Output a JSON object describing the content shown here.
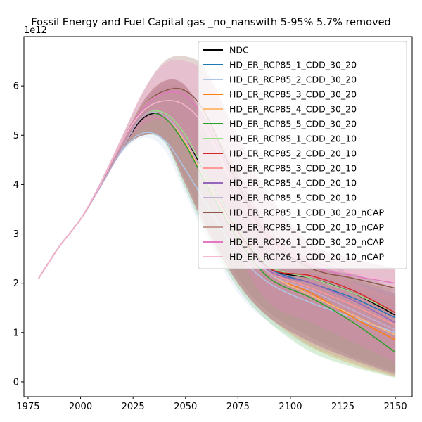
{
  "chart_data": {
    "type": "area",
    "title": "Fossil Energy and Fuel Capital gas _no_nanswith 5-95% 5.7% removed",
    "y_offset_label": "1e12",
    "xlabel": "",
    "ylabel": "",
    "xlim": [
      1973,
      2158
    ],
    "ylim": [
      -0.3,
      7.0
    ],
    "xticks": [
      1975,
      2000,
      2025,
      2050,
      2075,
      2100,
      2125,
      2150
    ],
    "yticks": [
      0,
      1,
      2,
      3,
      4,
      5,
      6
    ],
    "legend_position": "upper right",
    "legend": [
      {
        "name": "NDC",
        "color": "#000000"
      },
      {
        "name": "HD_ER_RCP85_1_CDD_30_20",
        "color": "#1f77b4"
      },
      {
        "name": "HD_ER_RCP85_2_CDD_30_20",
        "color": "#aec7e8"
      },
      {
        "name": "HD_ER_RCP85_3_CDD_30_20",
        "color": "#ff7f0e"
      },
      {
        "name": "HD_ER_RCP85_4_CDD_30_20",
        "color": "#ffbb78"
      },
      {
        "name": "HD_ER_RCP85_5_CDD_30_20",
        "color": "#2ca02c"
      },
      {
        "name": "HD_ER_RCP85_1_CDD_20_10",
        "color": "#98df8a"
      },
      {
        "name": "HD_ER_RCP85_2_CDD_20_10",
        "color": "#d62728"
      },
      {
        "name": "HD_ER_RCP85_3_CDD_20_10",
        "color": "#ff9896"
      },
      {
        "name": "HD_ER_RCP85_4_CDD_20_10",
        "color": "#9467bd"
      },
      {
        "name": "HD_ER_RCP85_5_CDD_20_10",
        "color": "#c5b0d5"
      },
      {
        "name": "HD_ER_RCP85_1_CDD_30_20_nCAP",
        "color": "#8c564b"
      },
      {
        "name": "HD_ER_RCP85_1_CDD_20_10_nCAP",
        "color": "#c49c94"
      },
      {
        "name": "HD_ER_RCP26_1_CDD_30_20_nCAP",
        "color": "#e377c2"
      },
      {
        "name": "HD_ER_RCP26_1_CDD_20_10_nCAP",
        "color": "#f7b6d2"
      }
    ],
    "x": [
      1980,
      1990,
      2000,
      2010,
      2020,
      2030,
      2040,
      2050,
      2060,
      2075,
      2090,
      2110,
      2130,
      2150
    ],
    "series": [
      {
        "name": "NDC",
        "color": "#000000",
        "values": [
          2.1,
          2.75,
          3.3,
          4.0,
          4.75,
          5.35,
          5.4,
          4.9,
          4.2,
          3.1,
          2.3,
          2.1,
          1.8,
          1.35
        ],
        "lower": [
          2.1,
          2.75,
          3.3,
          4.0,
          4.7,
          5.0,
          4.9,
          4.1,
          3.2,
          2.1,
          1.4,
          0.9,
          0.5,
          0.2
        ],
        "upper": [
          2.1,
          2.75,
          3.3,
          4.05,
          4.85,
          5.65,
          6.1,
          6.0,
          5.3,
          4.3,
          3.1,
          2.5,
          2.2,
          1.9
        ]
      },
      {
        "name": "HD_ER_RCP85_1_CDD_30_20",
        "color": "#1f77b4",
        "values": [
          2.1,
          2.75,
          3.3,
          4.0,
          4.75,
          5.4,
          5.4,
          4.9,
          4.1,
          3.0,
          2.3,
          2.0,
          1.7,
          1.3
        ],
        "lower": [
          2.1,
          2.75,
          3.3,
          4.0,
          4.7,
          5.0,
          4.9,
          4.0,
          3.1,
          2.0,
          1.3,
          0.8,
          0.45,
          0.15
        ],
        "upper": [
          2.1,
          2.75,
          3.3,
          4.05,
          4.85,
          5.7,
          6.1,
          6.0,
          5.2,
          4.2,
          3.0,
          2.4,
          2.1,
          1.8
        ]
      },
      {
        "name": "HD_ER_RCP85_2_CDD_30_20",
        "color": "#aec7e8",
        "values": [
          2.1,
          2.75,
          3.3,
          4.0,
          4.7,
          5.05,
          4.9,
          4.3,
          3.6,
          2.6,
          2.0,
          1.6,
          1.3,
          1.0
        ],
        "lower": [
          2.1,
          2.75,
          3.3,
          4.0,
          4.65,
          4.95,
          4.7,
          3.8,
          2.9,
          1.8,
          1.2,
          0.7,
          0.4,
          0.1
        ],
        "upper": [
          2.1,
          2.75,
          3.3,
          4.05,
          4.8,
          5.3,
          5.6,
          5.2,
          4.6,
          3.6,
          2.7,
          2.1,
          1.8,
          1.5
        ]
      },
      {
        "name": "HD_ER_RCP85_3_CDD_30_20",
        "color": "#ff7f0e",
        "values": [
          2.1,
          2.75,
          3.3,
          4.0,
          4.75,
          5.4,
          5.4,
          4.9,
          4.1,
          3.0,
          2.2,
          1.8,
          1.3,
          0.85
        ],
        "lower": [
          2.1,
          2.75,
          3.3,
          4.0,
          4.7,
          5.0,
          4.9,
          4.0,
          3.1,
          2.0,
          1.3,
          0.7,
          0.35,
          0.1
        ],
        "upper": [
          2.1,
          2.75,
          3.3,
          4.05,
          4.85,
          5.7,
          6.1,
          6.0,
          5.2,
          4.2,
          3.0,
          2.4,
          2.0,
          1.7
        ]
      },
      {
        "name": "HD_ER_RCP85_4_CDD_30_20",
        "color": "#ffbb78",
        "values": [
          2.1,
          2.75,
          3.3,
          4.0,
          4.75,
          5.4,
          5.4,
          4.85,
          4.05,
          2.95,
          2.2,
          1.75,
          1.35,
          0.95
        ],
        "lower": [
          2.1,
          2.75,
          3.3,
          4.0,
          4.7,
          5.0,
          4.9,
          4.0,
          3.1,
          2.0,
          1.3,
          0.7,
          0.35,
          0.1
        ],
        "upper": [
          2.1,
          2.75,
          3.3,
          4.05,
          4.85,
          5.7,
          6.1,
          6.0,
          5.2,
          4.2,
          3.0,
          2.4,
          2.0,
          1.7
        ]
      },
      {
        "name": "HD_ER_RCP85_5_CDD_30_20",
        "color": "#2ca02c",
        "values": [
          2.1,
          2.75,
          3.3,
          4.0,
          4.75,
          5.4,
          5.35,
          4.8,
          4.0,
          2.9,
          2.1,
          1.7,
          1.2,
          0.6
        ],
        "lower": [
          2.1,
          2.75,
          3.3,
          4.0,
          4.7,
          5.0,
          4.85,
          3.9,
          3.0,
          1.9,
          1.2,
          0.6,
          0.3,
          0.08
        ],
        "upper": [
          2.1,
          2.75,
          3.3,
          4.05,
          4.85,
          5.7,
          6.0,
          5.9,
          5.1,
          4.1,
          2.9,
          2.3,
          1.9,
          1.6
        ]
      },
      {
        "name": "HD_ER_RCP85_1_CDD_20_10",
        "color": "#98df8a",
        "values": [
          2.1,
          2.75,
          3.3,
          4.0,
          4.75,
          5.4,
          5.45,
          5.0,
          4.2,
          3.1,
          2.35,
          2.1,
          1.8,
          1.4
        ],
        "lower": [
          2.1,
          2.75,
          3.3,
          4.0,
          4.7,
          5.0,
          4.9,
          4.0,
          3.1,
          2.0,
          1.3,
          0.8,
          0.45,
          0.15
        ],
        "upper": [
          2.1,
          2.75,
          3.3,
          4.05,
          4.85,
          5.7,
          6.1,
          6.0,
          5.2,
          4.2,
          3.0,
          2.4,
          2.1,
          1.8
        ]
      },
      {
        "name": "HD_ER_RCP85_2_CDD_20_10",
        "color": "#d62728",
        "values": [
          2.1,
          2.75,
          3.3,
          4.0,
          4.75,
          5.4,
          5.4,
          4.9,
          4.1,
          3.05,
          2.3,
          2.15,
          1.85,
          1.4
        ],
        "lower": [
          2.1,
          2.75,
          3.3,
          4.0,
          4.7,
          5.0,
          4.9,
          4.0,
          3.1,
          2.0,
          1.3,
          0.8,
          0.45,
          0.15
        ],
        "upper": [
          2.1,
          2.75,
          3.3,
          4.05,
          4.85,
          5.7,
          6.1,
          6.0,
          5.2,
          4.2,
          3.0,
          2.4,
          2.1,
          1.8
        ]
      },
      {
        "name": "HD_ER_RCP85_3_CDD_20_10",
        "color": "#ff9896",
        "values": [
          2.1,
          2.75,
          3.3,
          4.0,
          4.75,
          5.4,
          5.4,
          4.9,
          4.1,
          3.0,
          2.25,
          1.9,
          1.55,
          1.15
        ],
        "lower": [
          2.1,
          2.75,
          3.3,
          4.0,
          4.7,
          5.0,
          4.9,
          4.0,
          3.1,
          2.0,
          1.3,
          0.75,
          0.4,
          0.12
        ],
        "upper": [
          2.1,
          2.75,
          3.3,
          4.05,
          4.85,
          5.7,
          6.1,
          6.0,
          5.2,
          4.2,
          3.0,
          2.4,
          2.0,
          1.7
        ]
      },
      {
        "name": "HD_ER_RCP85_4_CDD_20_10",
        "color": "#9467bd",
        "values": [
          2.1,
          2.75,
          3.3,
          4.0,
          4.75,
          5.4,
          5.4,
          4.9,
          4.1,
          3.0,
          2.25,
          2.0,
          1.65,
          1.2
        ],
        "lower": [
          2.1,
          2.75,
          3.3,
          4.0,
          4.7,
          5.0,
          4.9,
          4.0,
          3.1,
          2.0,
          1.3,
          0.8,
          0.45,
          0.15
        ],
        "upper": [
          2.1,
          2.75,
          3.3,
          4.05,
          4.85,
          5.7,
          6.1,
          6.0,
          5.2,
          4.2,
          3.0,
          2.4,
          2.05,
          1.75
        ]
      },
      {
        "name": "HD_ER_RCP85_5_CDD_20_10",
        "color": "#c5b0d5",
        "values": [
          2.1,
          2.75,
          3.3,
          4.0,
          4.75,
          5.4,
          5.4,
          4.9,
          4.1,
          3.0,
          2.2,
          1.85,
          1.45,
          1.05
        ],
        "lower": [
          2.1,
          2.75,
          3.3,
          4.0,
          4.7,
          5.0,
          4.9,
          4.0,
          3.1,
          2.0,
          1.3,
          0.75,
          0.4,
          0.12
        ],
        "upper": [
          2.1,
          2.75,
          3.3,
          4.05,
          4.85,
          5.7,
          6.1,
          6.0,
          5.2,
          4.2,
          3.0,
          2.4,
          2.0,
          1.7
        ]
      },
      {
        "name": "HD_ER_RCP85_1_CDD_30_20_nCAP",
        "color": "#8c564b",
        "values": [
          2.1,
          2.75,
          3.3,
          4.05,
          4.9,
          5.6,
          5.9,
          5.9,
          5.4,
          4.0,
          2.9,
          2.3,
          2.1,
          1.9
        ],
        "lower": [
          2.1,
          2.75,
          3.3,
          4.0,
          4.75,
          5.2,
          5.3,
          4.8,
          4.0,
          2.6,
          1.6,
          1.2,
          0.8,
          0.4
        ],
        "upper": [
          2.1,
          2.75,
          3.3,
          4.1,
          5.0,
          5.9,
          6.5,
          6.6,
          6.3,
          5.0,
          3.8,
          2.8,
          2.5,
          2.3
        ]
      },
      {
        "name": "HD_ER_RCP85_1_CDD_20_10_nCAP",
        "color": "#c49c94",
        "values": [
          2.1,
          2.75,
          3.3,
          4.05,
          4.9,
          5.6,
          5.85,
          5.8,
          5.3,
          3.9,
          2.8,
          2.25,
          2.05,
          1.85
        ],
        "lower": [
          2.1,
          2.75,
          3.3,
          4.0,
          4.75,
          5.2,
          5.3,
          4.8,
          4.0,
          2.6,
          1.6,
          1.2,
          0.8,
          0.4
        ],
        "upper": [
          2.1,
          2.75,
          3.3,
          4.1,
          5.0,
          5.9,
          6.5,
          6.6,
          6.3,
          5.0,
          3.8,
          2.8,
          2.5,
          2.3
        ]
      },
      {
        "name": "HD_ER_RCP26_1_CDD_30_20_nCAP",
        "color": "#e377c2",
        "values": [
          2.1,
          2.75,
          3.3,
          4.05,
          4.9,
          5.55,
          5.85,
          5.8,
          5.25,
          3.9,
          2.9,
          2.35,
          2.15,
          2.0
        ],
        "lower": [
          2.1,
          2.75,
          3.3,
          4.0,
          4.75,
          5.2,
          5.3,
          4.8,
          4.0,
          2.6,
          1.6,
          1.2,
          0.8,
          0.4
        ],
        "upper": [
          2.1,
          2.75,
          3.3,
          4.1,
          5.0,
          5.9,
          6.45,
          6.5,
          6.2,
          4.9,
          3.7,
          2.8,
          2.5,
          2.3
        ]
      },
      {
        "name": "HD_ER_RCP26_1_CDD_20_10_nCAP",
        "color": "#f7b6d2",
        "values": [
          2.1,
          2.75,
          3.3,
          4.05,
          4.9,
          5.5,
          5.7,
          5.6,
          5.1,
          3.8,
          2.85,
          2.4,
          2.2,
          2.05
        ],
        "lower": [
          2.1,
          2.75,
          3.3,
          4.0,
          4.75,
          5.2,
          5.3,
          4.8,
          4.0,
          2.6,
          1.6,
          1.2,
          0.8,
          0.4
        ],
        "upper": [
          2.1,
          2.75,
          3.3,
          4.1,
          5.0,
          5.9,
          6.45,
          6.5,
          6.2,
          4.9,
          3.7,
          2.8,
          2.5,
          2.3
        ]
      }
    ]
  }
}
